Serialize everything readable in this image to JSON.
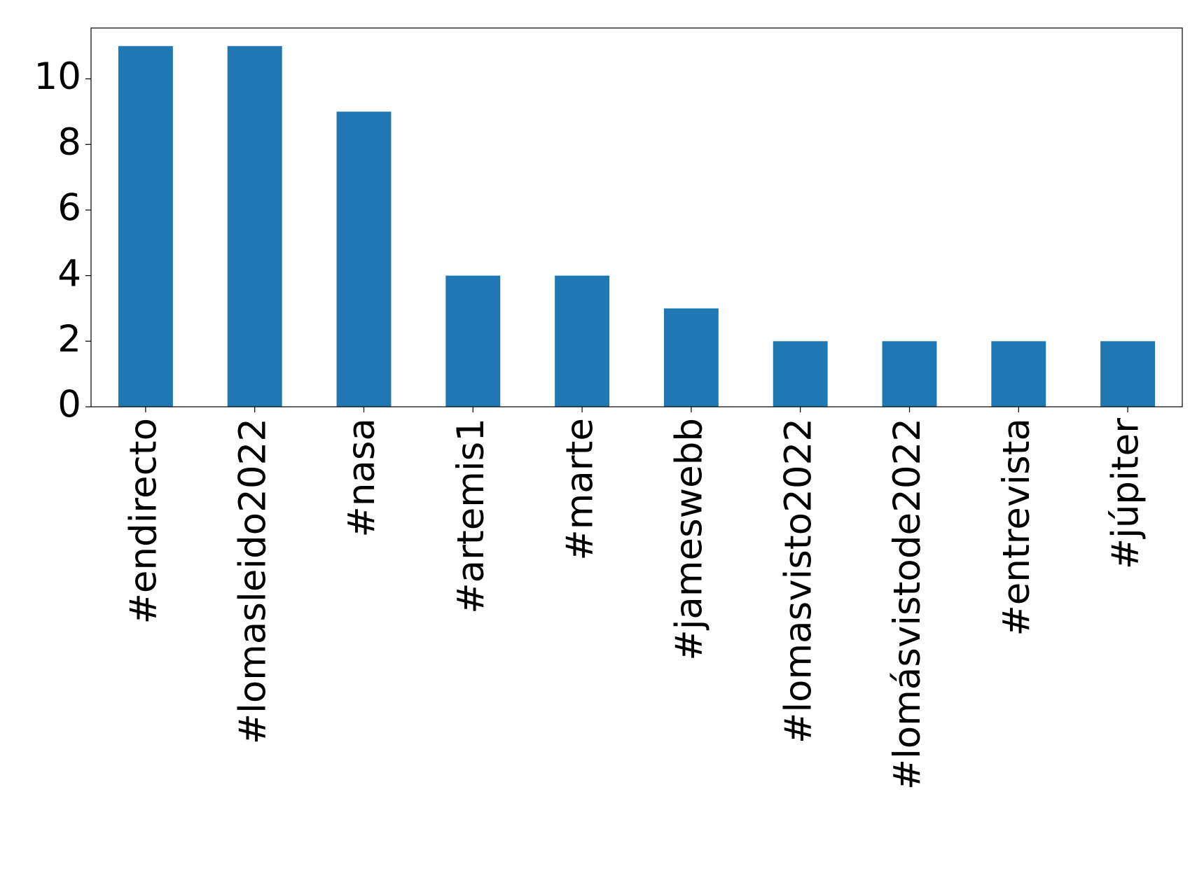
{
  "chart_data": {
    "type": "bar",
    "categories": [
      "#endirecto",
      "#lomasleido2022",
      "#nasa",
      "#artemis1",
      "#marte",
      "#jameswebb",
      "#lomasvisto2022",
      "#lomásvistode2022",
      "#entrevista",
      "#júpiter"
    ],
    "values": [
      11,
      11,
      9,
      4,
      4,
      3,
      2,
      2,
      2,
      2
    ],
    "color": "#1f77b4",
    "ylim": [
      0,
      11.55
    ],
    "yticks": [
      0,
      2,
      4,
      6,
      8,
      10
    ],
    "grid": false
  }
}
